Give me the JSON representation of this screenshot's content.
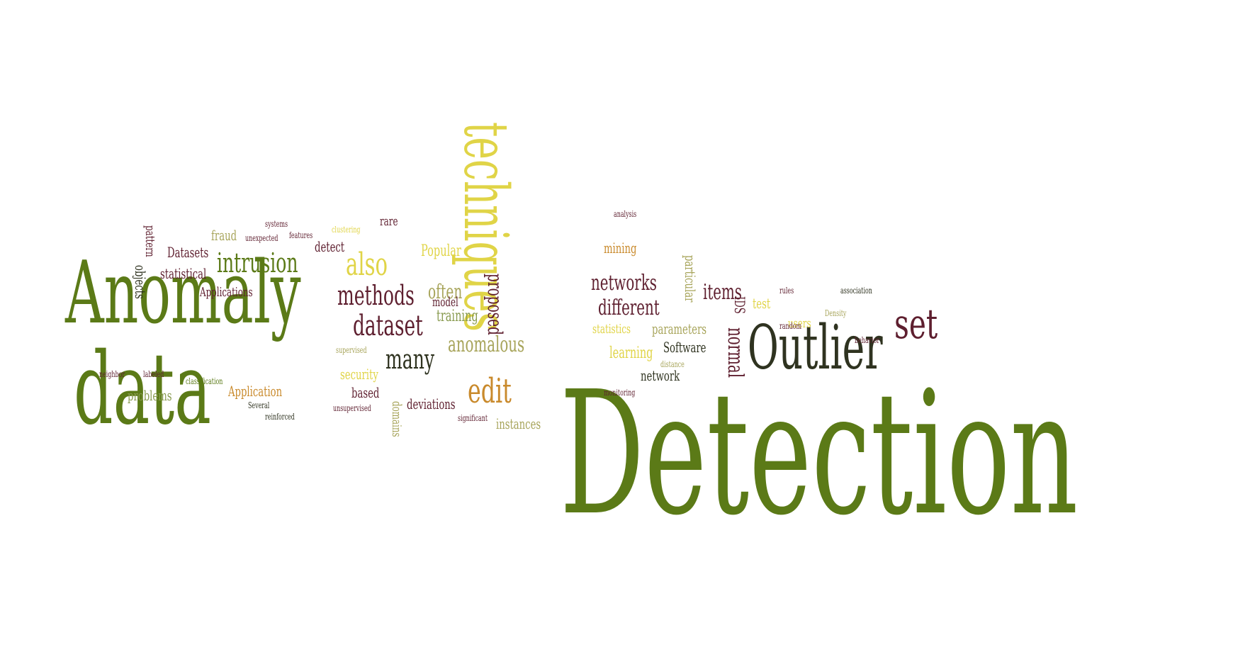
{
  "colors": {
    "olive": "#5b7a17",
    "olive_dark": "#4b6414",
    "maroon": "#5e1f2f",
    "yellow": "#e0d447",
    "orange": "#c98a2c",
    "khaki": "#a7a45a",
    "charcoal": "#2f3320",
    "sage": "#889a4f"
  },
  "words": [
    {
      "id": "detection",
      "text": "Detection",
      "color": "olive"
    },
    {
      "id": "anomaly",
      "text": "Anomaly",
      "color": "olive"
    },
    {
      "id": "data",
      "text": "data",
      "color": "olive"
    },
    {
      "id": "techniques",
      "text": "techniques",
      "color": "yellow"
    },
    {
      "id": "outlier",
      "text": "Outlier",
      "color": "charcoal"
    },
    {
      "id": "set",
      "text": "set",
      "color": "maroon"
    },
    {
      "id": "intrusion",
      "text": "intrusion",
      "color": "olive"
    },
    {
      "id": "methods",
      "text": "methods",
      "color": "maroon"
    },
    {
      "id": "dataset",
      "text": "dataset",
      "color": "maroon"
    },
    {
      "id": "many",
      "text": "many",
      "color": "charcoal"
    },
    {
      "id": "also",
      "text": "also",
      "color": "yellow"
    },
    {
      "id": "edit",
      "text": "edit",
      "color": "orange"
    },
    {
      "id": "anomalous",
      "text": "anomalous",
      "color": "khaki"
    },
    {
      "id": "networks",
      "text": "networks",
      "color": "maroon"
    },
    {
      "id": "different",
      "text": "different",
      "color": "maroon"
    },
    {
      "id": "normal",
      "text": "normal",
      "color": "maroon"
    },
    {
      "id": "items",
      "text": "items",
      "color": "maroon"
    },
    {
      "id": "often",
      "text": "often",
      "color": "khaki"
    },
    {
      "id": "proposed",
      "text": "proposed",
      "color": "maroon"
    },
    {
      "id": "training",
      "text": "training",
      "color": "sage"
    },
    {
      "id": "model",
      "text": "model",
      "color": "maroon"
    },
    {
      "id": "popular",
      "text": "Popular",
      "color": "yellow"
    },
    {
      "id": "deviations",
      "text": "deviations",
      "color": "maroon"
    },
    {
      "id": "based",
      "text": "based",
      "color": "maroon"
    },
    {
      "id": "security",
      "text": "security",
      "color": "yellow"
    },
    {
      "id": "problems",
      "text": "problems",
      "color": "sage"
    },
    {
      "id": "application",
      "text": "Application",
      "color": "orange"
    },
    {
      "id": "applications",
      "text": "Applications",
      "color": "maroon"
    },
    {
      "id": "statistical",
      "text": "statistical",
      "color": "maroon"
    },
    {
      "id": "datasets",
      "text": "Datasets",
      "color": "maroon"
    },
    {
      "id": "fraud",
      "text": "fraud",
      "color": "khaki"
    },
    {
      "id": "detect",
      "text": "detect",
      "color": "maroon"
    },
    {
      "id": "rare",
      "text": "rare",
      "color": "maroon"
    },
    {
      "id": "mining",
      "text": "mining",
      "color": "orange"
    },
    {
      "id": "learning",
      "text": "learning",
      "color": "yellow"
    },
    {
      "id": "statistics",
      "text": "statistics",
      "color": "yellow"
    },
    {
      "id": "parameters",
      "text": "parameters",
      "color": "khaki"
    },
    {
      "id": "software",
      "text": "Software",
      "color": "charcoal"
    },
    {
      "id": "network",
      "text": "network",
      "color": "charcoal"
    },
    {
      "id": "particular",
      "text": "particular",
      "color": "khaki"
    },
    {
      "id": "test",
      "text": "test",
      "color": "yellow"
    },
    {
      "id": "users",
      "text": "users",
      "color": "yellow"
    },
    {
      "id": "instances",
      "text": "instances",
      "color": "khaki"
    },
    {
      "id": "domains",
      "text": "domains",
      "color": "khaki"
    },
    {
      "id": "objects",
      "text": "objects",
      "color": "charcoal"
    },
    {
      "id": "pattern",
      "text": "pattern",
      "color": "maroon"
    },
    {
      "id": "ids",
      "text": "IDS",
      "color": "maroon"
    },
    {
      "id": "unsupervised",
      "text": "unsupervised",
      "color": "maroon"
    },
    {
      "id": "several",
      "text": "Several",
      "color": "charcoal"
    },
    {
      "id": "classification",
      "text": "classification",
      "color": "olive"
    },
    {
      "id": "neighbor",
      "text": "neighbor",
      "color": "maroon"
    },
    {
      "id": "distance",
      "text": "distance",
      "color": "khaki"
    },
    {
      "id": "analysis",
      "text": "analysis",
      "color": "maroon"
    },
    {
      "id": "density",
      "text": "Density",
      "color": "khaki"
    },
    {
      "id": "unexpected",
      "text": "unexpected",
      "color": "maroon"
    },
    {
      "id": "labeled",
      "text": "labeled",
      "color": "maroon"
    },
    {
      "id": "supervised",
      "text": "supervised",
      "color": "khaki"
    },
    {
      "id": "systems",
      "text": "systems",
      "color": "maroon"
    },
    {
      "id": "association",
      "text": "association",
      "color": "charcoal"
    },
    {
      "id": "features",
      "text": "features",
      "color": "maroon"
    },
    {
      "id": "clustering",
      "text": "clustering",
      "color": "yellow"
    },
    {
      "id": "rules",
      "text": "rules",
      "color": "maroon"
    },
    {
      "id": "behavior",
      "text": "behavior",
      "color": "maroon"
    },
    {
      "id": "monitoring",
      "text": "monitoring",
      "color": "maroon"
    },
    {
      "id": "reinforced",
      "text": "reinforced",
      "color": "charcoal"
    },
    {
      "id": "random",
      "text": "random",
      "color": "maroon"
    },
    {
      "id": "signifiant",
      "text": "significant",
      "color": "maroon"
    }
  ]
}
